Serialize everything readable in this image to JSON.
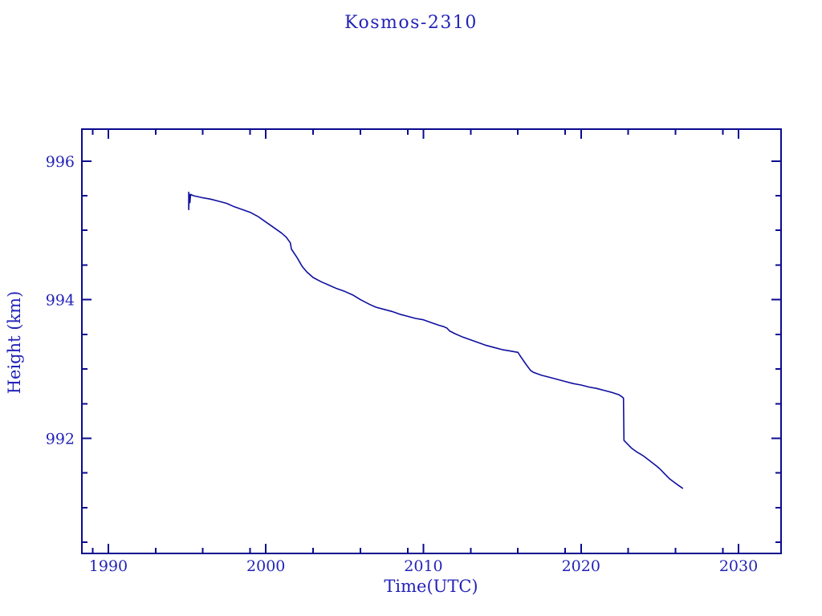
{
  "page": {
    "background_color": "#ffffff"
  },
  "chart_data": {
    "type": "line",
    "title": "Kosmos-2310",
    "xlabel": "Time(UTC)",
    "ylabel": "Height (km)",
    "xlim": [
      1988.32,
      2032.7
    ],
    "ylim": [
      990.34,
      996.46
    ],
    "grid": false,
    "legend": null,
    "colors": {
      "frame": "#0a0a8f",
      "curve": "#0f0fa0",
      "text": "#2323b8"
    },
    "x_major_ticks": [
      {
        "value": 1990,
        "label": "1990"
      },
      {
        "value": 2000,
        "label": "2000"
      },
      {
        "value": 2010,
        "label": "2010"
      },
      {
        "value": 2020,
        "label": "2020"
      },
      {
        "value": 2030,
        "label": "2030"
      }
    ],
    "x_minor_ticks": [
      1989,
      1993,
      1996,
      1999,
      2003,
      2006,
      2009,
      2013,
      2016,
      2019,
      2023,
      2026,
      2029
    ],
    "y_major_ticks": [
      {
        "value": 996,
        "label": "996"
      },
      {
        "value": 994,
        "label": "994"
      },
      {
        "value": 992,
        "label": "992"
      }
    ],
    "y_minor_ticks": [
      995.5,
      995,
      994.5,
      993.5,
      993,
      992.5,
      991.5,
      991,
      990.5
    ],
    "series": [
      {
        "name": "height-km",
        "points": [
          [
            1995.1,
            995.55
          ],
          [
            1995.1,
            995.3
          ],
          [
            1995.13,
            995.52
          ],
          [
            1995.18,
            995.4
          ],
          [
            1995.22,
            995.52
          ],
          [
            1995.4,
            995.5
          ],
          [
            1996.0,
            995.47
          ],
          [
            1996.5,
            995.45
          ],
          [
            1997.0,
            995.42
          ],
          [
            1997.5,
            995.39
          ],
          [
            1998.0,
            995.34
          ],
          [
            1998.5,
            995.3
          ],
          [
            1999.0,
            995.26
          ],
          [
            1999.5,
            995.2
          ],
          [
            2000.0,
            995.12
          ],
          [
            2000.5,
            995.04
          ],
          [
            2001.0,
            994.96
          ],
          [
            2001.3,
            994.9
          ],
          [
            2001.55,
            994.82
          ],
          [
            2001.62,
            994.73
          ],
          [
            2002.0,
            994.6
          ],
          [
            2002.3,
            994.48
          ],
          [
            2002.6,
            994.4
          ],
          [
            2003.0,
            994.32
          ],
          [
            2003.5,
            994.26
          ],
          [
            2004.0,
            994.21
          ],
          [
            2004.5,
            994.16
          ],
          [
            2005.0,
            994.12
          ],
          [
            2005.5,
            994.07
          ],
          [
            2006.0,
            994.0
          ],
          [
            2006.6,
            993.93
          ],
          [
            2007.0,
            993.89
          ],
          [
            2007.5,
            993.86
          ],
          [
            2008.0,
            993.83
          ],
          [
            2008.5,
            993.79
          ],
          [
            2009.0,
            993.76
          ],
          [
            2009.5,
            993.73
          ],
          [
            2010.0,
            993.71
          ],
          [
            2010.5,
            993.67
          ],
          [
            2011.0,
            993.63
          ],
          [
            2011.3,
            993.61
          ],
          [
            2011.5,
            993.59
          ],
          [
            2011.65,
            993.55
          ],
          [
            2012.0,
            993.51
          ],
          [
            2012.5,
            993.46
          ],
          [
            2013.0,
            993.42
          ],
          [
            2013.5,
            993.38
          ],
          [
            2014.0,
            993.34
          ],
          [
            2014.5,
            993.31
          ],
          [
            2015.0,
            993.28
          ],
          [
            2015.5,
            993.26
          ],
          [
            2016.0,
            993.24
          ],
          [
            2016.2,
            993.17
          ],
          [
            2016.5,
            993.07
          ],
          [
            2016.8,
            992.98
          ],
          [
            2017.0,
            992.95
          ],
          [
            2017.5,
            992.91
          ],
          [
            2018.0,
            992.88
          ],
          [
            2018.5,
            992.85
          ],
          [
            2019.0,
            992.82
          ],
          [
            2019.5,
            992.79
          ],
          [
            2020.0,
            992.77
          ],
          [
            2020.5,
            992.74
          ],
          [
            2021.0,
            992.72
          ],
          [
            2021.5,
            992.69
          ],
          [
            2022.0,
            992.66
          ],
          [
            2022.4,
            992.63
          ],
          [
            2022.6,
            992.6
          ],
          [
            2022.7,
            992.58
          ],
          [
            2022.73,
            991.97
          ],
          [
            2022.9,
            991.93
          ],
          [
            2023.2,
            991.86
          ],
          [
            2023.5,
            991.81
          ],
          [
            2023.8,
            991.77
          ],
          [
            2024.0,
            991.74
          ],
          [
            2024.4,
            991.67
          ],
          [
            2024.8,
            991.6
          ],
          [
            2025.0,
            991.56
          ],
          [
            2025.3,
            991.49
          ],
          [
            2025.6,
            991.42
          ],
          [
            2025.9,
            991.37
          ],
          [
            2026.2,
            991.32
          ],
          [
            2026.45,
            991.28
          ]
        ]
      }
    ]
  }
}
